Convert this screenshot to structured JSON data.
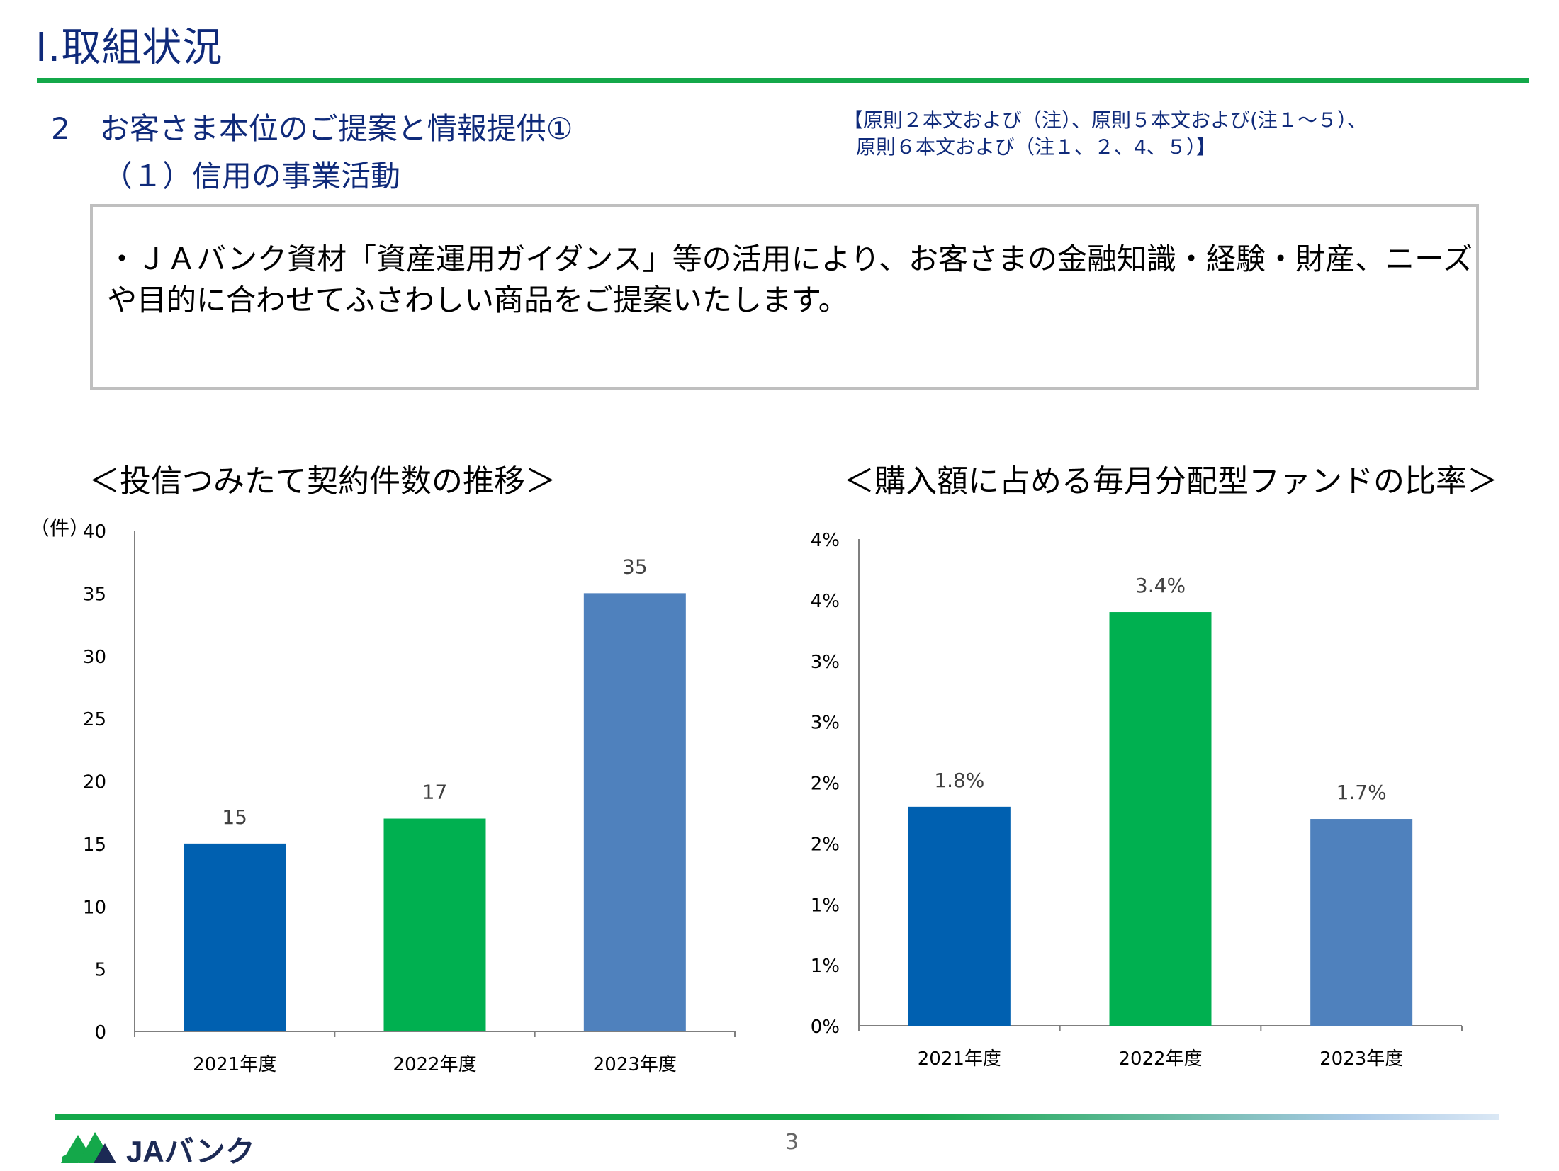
{
  "header": {
    "title": "Ⅰ.取組状況",
    "section": "2　お客さま本位のご提案と情報提供①",
    "subsection": "（１）信用の事業活動",
    "principles_line1": "【原則２本文および（注）、原則５本文および(注１～５）、",
    "principles_line2": "原則６本文および（注１、２、4、５）】"
  },
  "summary": {
    "line1": "・ＪＡバンク資材「資産運用ガイダンス」等の活用により、お客さまの金融知識・経験・財産、ニーズ",
    "line2": "や目的に合わせてふさわしい商品をご提案いたします。"
  },
  "chart_data": [
    {
      "type": "bar",
      "title": "＜投信つみたて契約件数の推移＞",
      "ylabel": "（件）",
      "categories": [
        "2021年度",
        "2022年度",
        "2023年度"
      ],
      "values": [
        15,
        17,
        35
      ],
      "data_labels": [
        "15",
        "17",
        "35"
      ],
      "ylim": [
        0,
        40
      ],
      "yticks": [
        0,
        5,
        10,
        15,
        20,
        25,
        30,
        35,
        40
      ],
      "ytick_labels": [
        "0",
        "5",
        "10",
        "15",
        "20",
        "25",
        "30",
        "35",
        "40"
      ],
      "bar_colors": [
        "#0060b0",
        "#00b050",
        "#4f81bd"
      ],
      "grid": false,
      "legend": "none"
    },
    {
      "type": "bar",
      "title": "＜購入額に占める毎月分配型ファンドの比率＞",
      "ylabel": "",
      "categories": [
        "2021年度",
        "2022年度",
        "2023年度"
      ],
      "values": [
        1.8,
        3.4,
        1.7
      ],
      "data_labels": [
        "1.8%",
        "3.4%",
        "1.7%"
      ],
      "ylim": [
        0,
        4
      ],
      "yticks": [
        0,
        0.5,
        1,
        1.5,
        2,
        2.5,
        3,
        3.5,
        4
      ],
      "ytick_labels": [
        "0%",
        "1%",
        "1%",
        "2%",
        "2%",
        "3%",
        "3%",
        "4%",
        "4%"
      ],
      "bar_colors": [
        "#0060b0",
        "#00b050",
        "#4f81bd"
      ],
      "grid": false,
      "legend": "none"
    }
  ],
  "footer": {
    "brand": "JAバンク",
    "page_number": "3"
  },
  "colors": {
    "accent_green": "#14a84a",
    "heading_navy": "#0f2a7a"
  }
}
